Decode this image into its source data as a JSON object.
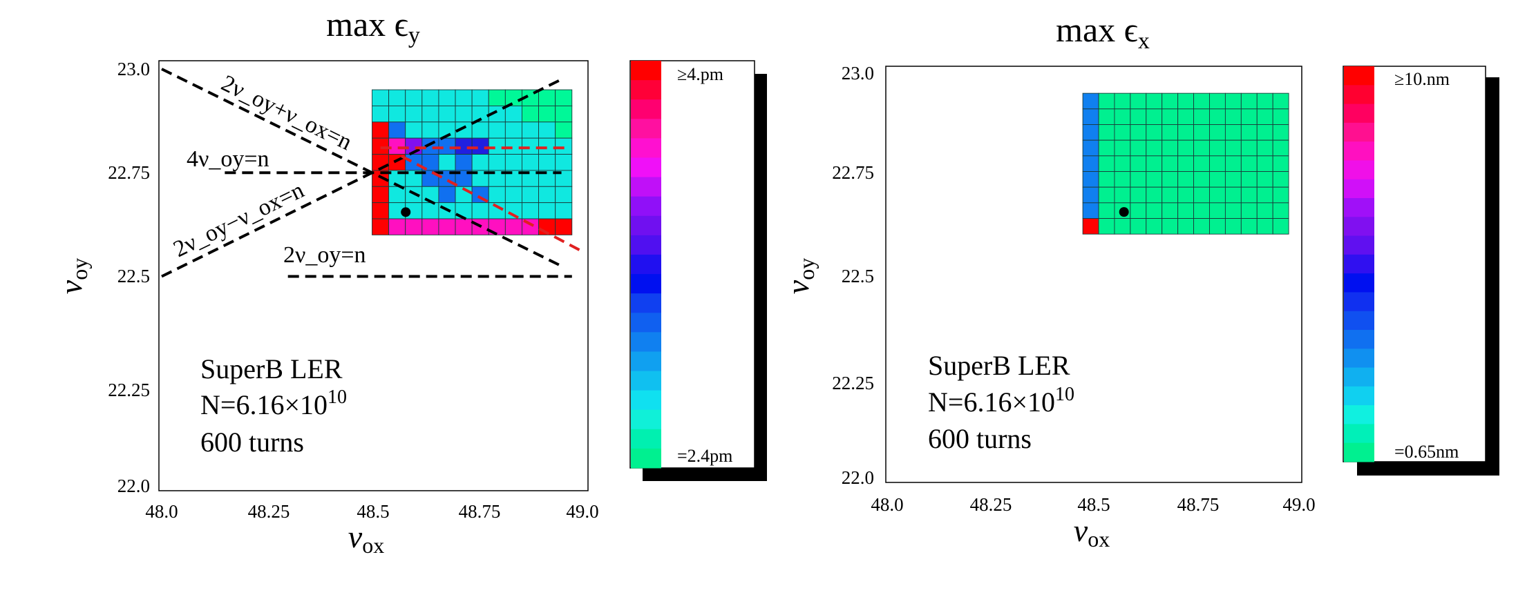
{
  "chart_data": [
    {
      "type": "heatmap",
      "title": "max ϵ_y",
      "xlabel": "ν_ox",
      "ylabel": "ν_oy",
      "xlim": [
        48.0,
        49.0
      ],
      "ylim": [
        22.0,
        23.0
      ],
      "xticks": [
        "48.0",
        "48.25",
        "48.5",
        "48.75",
        "49.0"
      ],
      "yticks": [
        "22.0",
        "22.25",
        "22.5",
        "22.75",
        "23.0"
      ],
      "grid": {
        "x0": 48.5,
        "x1": 48.975,
        "y0": 22.6,
        "y1": 22.95,
        "cols": 12,
        "rows": 9
      },
      "cells": [
        [
          "c",
          "c",
          "c",
          "c",
          "c",
          "c",
          "c",
          "t",
          "t",
          "t",
          "t",
          "t"
        ],
        [
          "c",
          "c",
          "c",
          "c",
          "c",
          "c",
          "c",
          "c",
          "c",
          "t",
          "t",
          "t"
        ],
        [
          "r",
          "b",
          "c",
          "c",
          "c",
          "c",
          "c",
          "c",
          "c",
          "c",
          "c",
          "t"
        ],
        [
          "r",
          "m",
          "v",
          "b",
          "b",
          "B",
          "B",
          "c",
          "c",
          "c",
          "c",
          "c"
        ],
        [
          "r",
          "r",
          "b",
          "b",
          "c",
          "b",
          "c",
          "c",
          "c",
          "c",
          "c",
          "c"
        ],
        [
          "r",
          "c",
          "c",
          "b",
          "b",
          "b",
          "c",
          "c",
          "c",
          "c",
          "c",
          "c"
        ],
        [
          "r",
          "c",
          "c",
          "c",
          "b",
          "c",
          "b",
          "c",
          "c",
          "c",
          "c",
          "c"
        ],
        [
          "r",
          "c",
          "c",
          "c",
          "c",
          "c",
          "c",
          "c",
          "c",
          "c",
          "c",
          "c"
        ],
        [
          "r",
          "m",
          "m",
          "m",
          "m",
          "m",
          "m",
          "m",
          "m",
          "m",
          "r",
          "r"
        ]
      ],
      "palette": {
        "t": "#00f898",
        "c": "#10e8e0",
        "s": "#10c8f0",
        "b": "#1070f0",
        "B": "#2020e0",
        "v": "#8010f0",
        "m": "#ff10c0",
        "r": "#ff0000"
      },
      "marker": {
        "x": 48.58,
        "y": 22.655,
        "color": "#000000"
      },
      "resonance_lines": [
        {
          "x": [
            48.0,
            48.95
          ],
          "y": [
            22.5,
            22.975
          ],
          "color": "#000000",
          "dashed": true
        },
        {
          "x": [
            48.0,
            48.95
          ],
          "y": [
            23.0,
            22.525
          ],
          "color": "#000000",
          "dashed": true
        },
        {
          "x": [
            48.15,
            48.95
          ],
          "y": [
            22.75,
            22.75
          ],
          "color": "#000000",
          "dashed": true
        },
        {
          "x": [
            48.3,
            48.975
          ],
          "y": [
            22.5,
            22.5
          ],
          "color": "#000000",
          "dashed": true
        },
        {
          "x": [
            48.52,
            48.96
          ],
          "y": [
            22.81,
            22.81
          ],
          "color": "#e02020",
          "dashed": true
        },
        {
          "x": [
            48.57,
            49.0
          ],
          "y": [
            22.79,
            22.56
          ],
          "color": "#e02020",
          "dashed": true
        }
      ],
      "annotations": {
        "coupling_sum": "2ν_oy+ν_ox=n",
        "fourth_order": "4ν_oy=n",
        "coupling_diff": "2ν_oy−ν_ox=n",
        "half_integer": "2ν_oy=n"
      },
      "info": {
        "machine": "SuperB LER",
        "population_prefix": "N=6.16×10",
        "population_exp": "10",
        "turns": "600 turns"
      },
      "colorbar": {
        "top_label": "≥4.pm",
        "bottom_label": "=2.4pm",
        "colors": [
          "#ff0000",
          "#ff0038",
          "#ff0070",
          "#ff10a0",
          "#ff10d0",
          "#f010f8",
          "#c010f8",
          "#9010f8",
          "#7010f0",
          "#5010f0",
          "#2010f0",
          "#0010f0",
          "#1040f0",
          "#1060f0",
          "#1080f0",
          "#10a0f0",
          "#10c0f0",
          "#10e0f0",
          "#10f0d8",
          "#00f0b0",
          "#00f090"
        ]
      }
    },
    {
      "type": "heatmap",
      "title": "max ϵ_x",
      "xlabel": "ν_ox",
      "ylabel": "ν_oy",
      "xlim": [
        48.0,
        49.0
      ],
      "ylim": [
        22.0,
        23.0
      ],
      "xticks": [
        "48.0",
        "48.25",
        "48.5",
        "48.75",
        "49.0"
      ],
      "yticks": [
        "22.0",
        "22.25",
        "22.5",
        "22.75",
        "23.0"
      ],
      "grid": {
        "x0": 48.475,
        "x1": 48.975,
        "y0": 22.6,
        "y1": 22.95,
        "cols": 13,
        "rows": 9
      },
      "cells": [
        [
          "b",
          "t",
          "t",
          "t",
          "t",
          "t",
          "t",
          "t",
          "t",
          "t",
          "t",
          "t",
          "t"
        ],
        [
          "b",
          "t",
          "t",
          "t",
          "t",
          "t",
          "t",
          "t",
          "t",
          "t",
          "t",
          "t",
          "t"
        ],
        [
          "b",
          "t",
          "t",
          "t",
          "t",
          "t",
          "t",
          "t",
          "t",
          "t",
          "t",
          "t",
          "t"
        ],
        [
          "b",
          "t",
          "t",
          "t",
          "t",
          "t",
          "t",
          "t",
          "t",
          "t",
          "t",
          "t",
          "t"
        ],
        [
          "b",
          "t",
          "t",
          "t",
          "t",
          "t",
          "t",
          "t",
          "t",
          "t",
          "t",
          "t",
          "t"
        ],
        [
          "b",
          "t",
          "t",
          "t",
          "t",
          "t",
          "t",
          "t",
          "t",
          "t",
          "t",
          "t",
          "t"
        ],
        [
          "b",
          "t",
          "t",
          "t",
          "t",
          "t",
          "t",
          "t",
          "t",
          "t",
          "t",
          "t",
          "t"
        ],
        [
          "b",
          "t",
          "t",
          "t",
          "t",
          "t",
          "t",
          "t",
          "t",
          "t",
          "t",
          "t",
          "t"
        ],
        [
          "r",
          "t",
          "t",
          "t",
          "t",
          "t",
          "t",
          "t",
          "t",
          "t",
          "t",
          "t",
          "t"
        ]
      ],
      "palette": {
        "t": "#00f090",
        "b": "#1080f0",
        "r": "#ff0000"
      },
      "marker": {
        "x": 48.575,
        "y": 22.655,
        "color": "#000000"
      },
      "resonance_lines": [],
      "annotations": {},
      "info": {
        "machine": "SuperB LER",
        "population_prefix": "N=6.16×10",
        "population_exp": "10",
        "turns": "600 turns"
      },
      "colorbar": {
        "top_label": "≥10.nm",
        "bottom_label": "=0.65nm",
        "colors": [
          "#ff0000",
          "#ff0030",
          "#ff0060",
          "#ff1090",
          "#ff10c0",
          "#f010e8",
          "#d010f8",
          "#a010f8",
          "#8010f0",
          "#6010f0",
          "#3010f0",
          "#0010f0",
          "#1030f0",
          "#1050f0",
          "#1070f0",
          "#1090f0",
          "#10b0f0",
          "#10d0f0",
          "#10f0e0",
          "#00f0b8",
          "#00f090"
        ]
      }
    }
  ]
}
